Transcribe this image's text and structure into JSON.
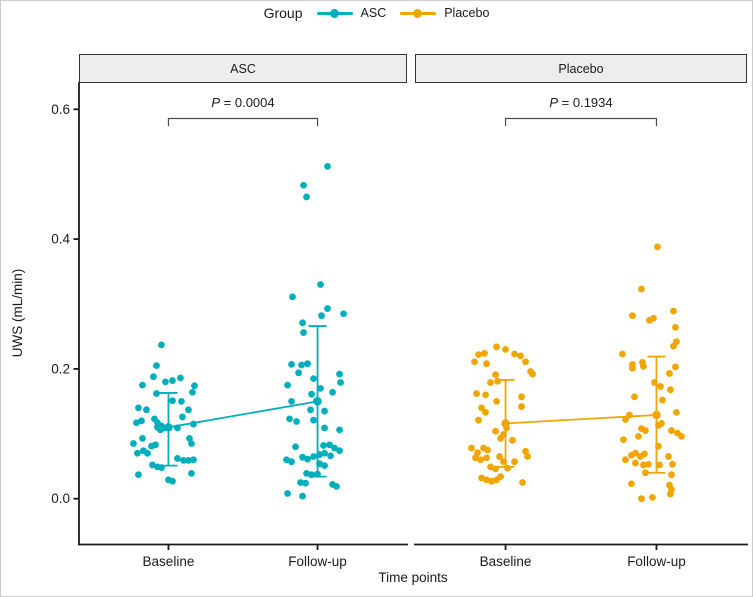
{
  "chart_data": {
    "type": "scatter",
    "subtype": "faceted jittered dot plot with mean and SD error bars, paired comparison",
    "title": "",
    "xlabel": "Time points",
    "ylabel": "UWS (mL/min)",
    "categories": [
      "Baseline",
      "Follow-up"
    ],
    "y_axis": {
      "min": 0.0,
      "max": 0.6,
      "ticks": [
        "0.0",
        "0.2",
        "0.4",
        "0.6"
      ],
      "tick_values": [
        0,
        0.2,
        0.4,
        0.6
      ],
      "grid": "off"
    },
    "legend": {
      "title": "Group",
      "position": "top",
      "items": [
        {
          "label": "ASC",
          "color": "#00AFBB"
        },
        {
          "label": "Placebo",
          "color": "#F0A500"
        }
      ]
    },
    "p_symbol": "P",
    "p_eq": " = ",
    "points_format": "each point is [x_jitter_px_offset_from_category_center, uws_value_mL_per_min]",
    "facets": [
      {
        "label": "ASC",
        "color": "#00AFBB",
        "p_value": "0.0004",
        "summary": [
          {
            "category": "Baseline",
            "mean": 0.11,
            "lower": 0.051,
            "upper": 0.163
          },
          {
            "category": "Follow-up",
            "mean": 0.15,
            "lower": 0.034,
            "upper": 0.266
          }
        ],
        "points": [
          [
            [
              -7,
              0.237
            ],
            [
              -12,
              0.205
            ],
            [
              -15,
              0.188
            ],
            [
              -26,
              0.175
            ],
            [
              -3,
              0.18
            ],
            [
              4,
              0.182
            ],
            [
              12,
              0.186
            ],
            [
              -12,
              0.162
            ],
            [
              26,
              0.174
            ],
            [
              24,
              0.164
            ],
            [
              -30,
              0.14
            ],
            [
              -22,
              0.137
            ],
            [
              4,
              0.151
            ],
            [
              13,
              0.15
            ],
            [
              20,
              0.137
            ],
            [
              14,
              0.126
            ],
            [
              -32,
              0.117
            ],
            [
              -27,
              0.12
            ],
            [
              -14,
              0.123
            ],
            [
              -11,
              0.117
            ],
            [
              -7,
              0.112
            ],
            [
              -11,
              0.11
            ],
            [
              -8,
              0.106
            ],
            [
              -5,
              0.109
            ],
            [
              9,
              0.109
            ],
            [
              25,
              0.115
            ],
            [
              -35,
              0.085
            ],
            [
              -26,
              0.093
            ],
            [
              -17,
              0.081
            ],
            [
              -13,
              0.083
            ],
            [
              21,
              0.093
            ],
            [
              23,
              0.085
            ],
            [
              -31,
              0.07
            ],
            [
              -25,
              0.074
            ],
            [
              -21,
              0.07
            ],
            [
              9,
              0.062
            ],
            [
              15,
              0.059
            ],
            [
              20,
              0.059
            ],
            [
              25,
              0.06
            ],
            [
              -16,
              0.052
            ],
            [
              -11,
              0.049
            ],
            [
              -7,
              0.048
            ],
            [
              -30,
              0.037
            ],
            [
              0,
              0.029
            ],
            [
              4,
              0.027
            ],
            [
              23,
              0.039
            ]
          ],
          [
            [
              10,
              0.512
            ],
            [
              -14,
              0.483
            ],
            [
              -11,
              0.465
            ],
            [
              3,
              0.33
            ],
            [
              -25,
              0.311
            ],
            [
              4,
              0.282
            ],
            [
              10,
              0.293
            ],
            [
              26,
              0.285
            ],
            [
              -15,
              0.271
            ],
            [
              -14,
              0.256
            ],
            [
              -26,
              0.207
            ],
            [
              -16,
              0.206
            ],
            [
              -10,
              0.208
            ],
            [
              -19,
              0.194
            ],
            [
              -4,
              0.185
            ],
            [
              22,
              0.192
            ],
            [
              23,
              0.179
            ],
            [
              -30,
              0.175
            ],
            [
              3,
              0.17
            ],
            [
              -6,
              0.161
            ],
            [
              15,
              0.164
            ],
            [
              -26,
              0.15
            ],
            [
              -1,
              0.151
            ],
            [
              -7,
              0.137
            ],
            [
              7,
              0.135
            ],
            [
              -28,
              0.123
            ],
            [
              -21,
              0.119
            ],
            [
              -4,
              0.121
            ],
            [
              7,
              0.109
            ],
            [
              22,
              0.106
            ],
            [
              -22,
              0.08
            ],
            [
              6,
              0.082
            ],
            [
              12,
              0.083
            ],
            [
              17,
              0.078
            ],
            [
              22,
              0.074
            ],
            [
              -31,
              0.06
            ],
            [
              -26,
              0.057
            ],
            [
              -15,
              0.064
            ],
            [
              -10,
              0.061
            ],
            [
              -4,
              0.065
            ],
            [
              2,
              0.068
            ],
            [
              7,
              0.07
            ],
            [
              13,
              0.066
            ],
            [
              2,
              0.054
            ],
            [
              7,
              0.051
            ],
            [
              -11,
              0.039
            ],
            [
              -6,
              0.037
            ],
            [
              0,
              0.038
            ],
            [
              -17,
              0.025
            ],
            [
              -12,
              0.024
            ],
            [
              15,
              0.022
            ],
            [
              19,
              0.019
            ],
            [
              -30,
              0.008
            ],
            [
              -15,
              0.004
            ]
          ]
        ]
      },
      {
        "label": "Placebo",
        "color": "#F0A500",
        "p_value": "0.1934",
        "summary": [
          {
            "category": "Baseline",
            "mean": 0.116,
            "lower": 0.049,
            "upper": 0.183
          },
          {
            "category": "Follow-up",
            "mean": 0.129,
            "lower": 0.04,
            "upper": 0.219
          }
        ],
        "points": [
          [
            [
              -9,
              0.234
            ],
            [
              0,
              0.23
            ],
            [
              -27,
              0.222
            ],
            [
              -21,
              0.224
            ],
            [
              9,
              0.223
            ],
            [
              15,
              0.22
            ],
            [
              -31,
              0.211
            ],
            [
              -19,
              0.208
            ],
            [
              20,
              0.211
            ],
            [
              -10,
              0.191
            ],
            [
              -15,
              0.179
            ],
            [
              -8,
              0.181
            ],
            [
              25,
              0.196
            ],
            [
              27,
              0.192
            ],
            [
              -29,
              0.162
            ],
            [
              -20,
              0.16
            ],
            [
              16,
              0.157
            ],
            [
              -9,
              0.15
            ],
            [
              -24,
              0.14
            ],
            [
              -20,
              0.133
            ],
            [
              16,
              0.142
            ],
            [
              -27,
              0.121
            ],
            [
              1,
              0.109
            ],
            [
              -2,
              0.099
            ],
            [
              -10,
              0.104
            ],
            [
              -5,
              0.093
            ],
            [
              7,
              0.09
            ],
            [
              -34,
              0.078
            ],
            [
              -28,
              0.071
            ],
            [
              -22,
              0.078
            ],
            [
              -18,
              0.075
            ],
            [
              -30,
              0.063
            ],
            [
              -25,
              0.06
            ],
            [
              -19,
              0.063
            ],
            [
              20,
              0.073
            ],
            [
              22,
              0.065
            ],
            [
              -6,
              0.065
            ],
            [
              -2,
              0.057
            ],
            [
              -15,
              0.049
            ],
            [
              -10,
              0.046
            ],
            [
              2,
              0.047
            ],
            [
              9,
              0.057
            ],
            [
              -24,
              0.032
            ],
            [
              -19,
              0.029
            ],
            [
              -14,
              0.027
            ],
            [
              -9,
              0.029
            ],
            [
              -5,
              0.034
            ],
            [
              17,
              0.025
            ]
          ],
          [
            [
              1,
              0.388
            ],
            [
              -15,
              0.323
            ],
            [
              -24,
              0.282
            ],
            [
              -7,
              0.275
            ],
            [
              -3,
              0.278
            ],
            [
              17,
              0.289
            ],
            [
              19,
              0.264
            ],
            [
              20,
              0.242
            ],
            [
              17,
              0.235
            ],
            [
              -34,
              0.223
            ],
            [
              -14,
              0.21
            ],
            [
              19,
              0.203
            ],
            [
              -24,
              0.207
            ],
            [
              -24,
              0.201
            ],
            [
              -13,
              0.204
            ],
            [
              13,
              0.193
            ],
            [
              -2,
              0.179
            ],
            [
              4,
              0.173
            ],
            [
              14,
              0.168
            ],
            [
              -22,
              0.157
            ],
            [
              6,
              0.152
            ],
            [
              20,
              0.133
            ],
            [
              -27,
              0.129
            ],
            [
              -31,
              0.122
            ],
            [
              -15,
              0.108
            ],
            [
              -11,
              0.105
            ],
            [
              -18,
              0.096
            ],
            [
              2,
              0.113
            ],
            [
              5,
              0.116
            ],
            [
              15,
              0.105
            ],
            [
              21,
              0.101
            ],
            [
              25,
              0.096
            ],
            [
              -33,
              0.091
            ],
            [
              2,
              0.081
            ],
            [
              -31,
              0.06
            ],
            [
              -25,
              0.067
            ],
            [
              -21,
              0.07
            ],
            [
              -16,
              0.065
            ],
            [
              -12,
              0.069
            ],
            [
              -21,
              0.055
            ],
            [
              -13,
              0.052
            ],
            [
              -8,
              0.053
            ],
            [
              12,
              0.065
            ],
            [
              16,
              0.053
            ],
            [
              3,
              0.052
            ],
            [
              -11,
              0.04
            ],
            [
              15,
              0.037
            ],
            [
              -25,
              0.023
            ],
            [
              13,
              0.021
            ],
            [
              15,
              0.014
            ],
            [
              14,
              0.007
            ],
            [
              -4,
              0.002
            ],
            [
              -15,
              0.0
            ]
          ]
        ]
      }
    ]
  }
}
